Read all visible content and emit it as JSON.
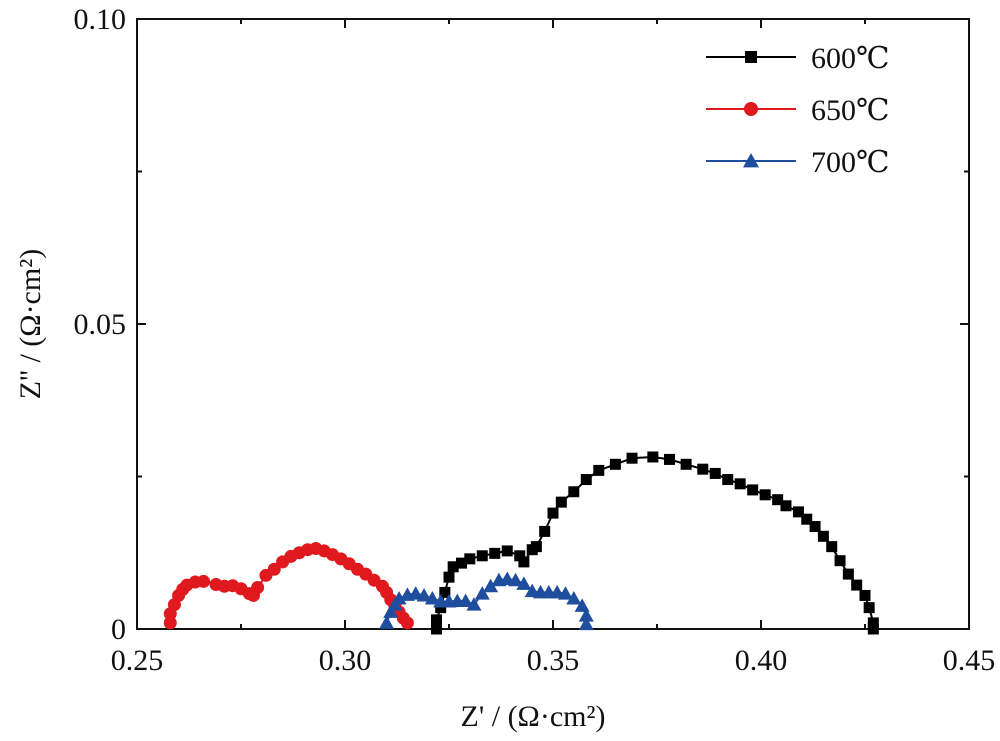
{
  "chart_data": {
    "type": "line",
    "title": "",
    "xlabel": "Z' / (Ω·cm²)",
    "ylabel": "Z'' / (Ω·cm²)",
    "xlim": [
      0.25,
      0.45
    ],
    "ylim": [
      0,
      0.1
    ],
    "xticks": [
      0.25,
      0.3,
      0.35,
      0.4,
      0.45
    ],
    "xtick_labels": [
      "0.25",
      "0.30",
      "0.35",
      "0.40",
      "0.45"
    ],
    "yticks": [
      0,
      0.05,
      0.1
    ],
    "ytick_labels": [
      "0",
      "0.05",
      "0.10"
    ],
    "grid": false,
    "legend_position": "top-right",
    "series": [
      {
        "name": "600℃",
        "color": "#000000",
        "marker": "square",
        "points": [
          [
            0.322,
            0.0
          ],
          [
            0.322,
            0.0015
          ],
          [
            0.323,
            0.0035
          ],
          [
            0.324,
            0.006
          ],
          [
            0.325,
            0.0085
          ],
          [
            0.326,
            0.0102
          ],
          [
            0.328,
            0.0108
          ],
          [
            0.33,
            0.0115
          ],
          [
            0.333,
            0.012
          ],
          [
            0.336,
            0.0124
          ],
          [
            0.339,
            0.0128
          ],
          [
            0.342,
            0.012
          ],
          [
            0.343,
            0.011
          ],
          [
            0.345,
            0.013
          ],
          [
            0.346,
            0.0135
          ],
          [
            0.348,
            0.016
          ],
          [
            0.35,
            0.019
          ],
          [
            0.352,
            0.0208
          ],
          [
            0.355,
            0.0225
          ],
          [
            0.358,
            0.0245
          ],
          [
            0.361,
            0.026
          ],
          [
            0.365,
            0.027
          ],
          [
            0.369,
            0.028
          ],
          [
            0.374,
            0.0282
          ],
          [
            0.378,
            0.0278
          ],
          [
            0.382,
            0.027
          ],
          [
            0.386,
            0.0262
          ],
          [
            0.389,
            0.0255
          ],
          [
            0.392,
            0.0245
          ],
          [
            0.395,
            0.0238
          ],
          [
            0.398,
            0.0228
          ],
          [
            0.401,
            0.022
          ],
          [
            0.404,
            0.0212
          ],
          [
            0.406,
            0.0202
          ],
          [
            0.409,
            0.0192
          ],
          [
            0.411,
            0.018
          ],
          [
            0.413,
            0.0168
          ],
          [
            0.415,
            0.0152
          ],
          [
            0.417,
            0.0135
          ],
          [
            0.419,
            0.0112
          ],
          [
            0.421,
            0.009
          ],
          [
            0.423,
            0.0072
          ],
          [
            0.425,
            0.0055
          ],
          [
            0.426,
            0.0035
          ],
          [
            0.427,
            0.001
          ],
          [
            0.427,
            0.0
          ]
        ]
      },
      {
        "name": "650℃",
        "color": "#e0191e",
        "marker": "circle",
        "points": [
          [
            0.258,
            0.001
          ],
          [
            0.258,
            0.0025
          ],
          [
            0.259,
            0.004
          ],
          [
            0.26,
            0.0055
          ],
          [
            0.261,
            0.0065
          ],
          [
            0.262,
            0.0072
          ],
          [
            0.264,
            0.0077
          ],
          [
            0.266,
            0.0078
          ],
          [
            0.269,
            0.0073
          ],
          [
            0.271,
            0.007
          ],
          [
            0.273,
            0.0071
          ],
          [
            0.275,
            0.0066
          ],
          [
            0.277,
            0.0058
          ],
          [
            0.278,
            0.0055
          ],
          [
            0.279,
            0.0068
          ],
          [
            0.281,
            0.0088
          ],
          [
            0.283,
            0.0098
          ],
          [
            0.285,
            0.011
          ],
          [
            0.287,
            0.0119
          ],
          [
            0.289,
            0.0125
          ],
          [
            0.291,
            0.013
          ],
          [
            0.293,
            0.0132
          ],
          [
            0.295,
            0.0128
          ],
          [
            0.297,
            0.0122
          ],
          [
            0.299,
            0.0115
          ],
          [
            0.301,
            0.0107
          ],
          [
            0.303,
            0.0098
          ],
          [
            0.305,
            0.009
          ],
          [
            0.307,
            0.008
          ],
          [
            0.309,
            0.007
          ],
          [
            0.31,
            0.006
          ],
          [
            0.311,
            0.0048
          ],
          [
            0.312,
            0.0038
          ],
          [
            0.313,
            0.0028
          ],
          [
            0.314,
            0.0018
          ],
          [
            0.315,
            0.001
          ]
        ]
      },
      {
        "name": "700℃",
        "color": "#1f4e9e",
        "marker": "triangle",
        "points": [
          [
            0.31,
            0.001
          ],
          [
            0.311,
            0.0028
          ],
          [
            0.312,
            0.004
          ],
          [
            0.313,
            0.005
          ],
          [
            0.315,
            0.0056
          ],
          [
            0.317,
            0.0058
          ],
          [
            0.319,
            0.0055
          ],
          [
            0.321,
            0.005
          ],
          [
            0.323,
            0.0045
          ],
          [
            0.325,
            0.0045
          ],
          [
            0.327,
            0.0046
          ],
          [
            0.329,
            0.0046
          ],
          [
            0.331,
            0.004
          ],
          [
            0.333,
            0.0058
          ],
          [
            0.335,
            0.007
          ],
          [
            0.337,
            0.008
          ],
          [
            0.339,
            0.0082
          ],
          [
            0.341,
            0.008
          ],
          [
            0.343,
            0.0074
          ],
          [
            0.345,
            0.0062
          ],
          [
            0.347,
            0.006
          ],
          [
            0.349,
            0.006
          ],
          [
            0.351,
            0.006
          ],
          [
            0.353,
            0.0058
          ],
          [
            0.355,
            0.005
          ],
          [
            0.357,
            0.0038
          ],
          [
            0.358,
            0.0022
          ],
          [
            0.358,
            0.0008
          ]
        ]
      }
    ]
  }
}
